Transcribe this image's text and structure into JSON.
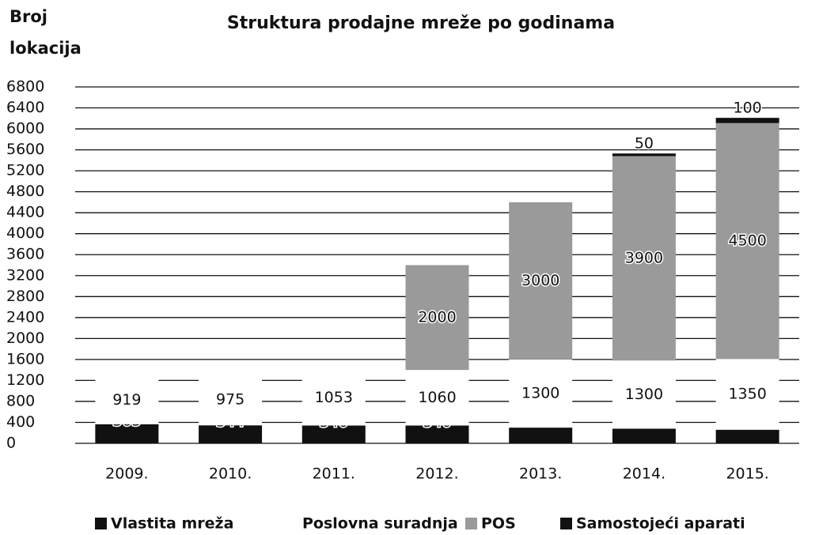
{
  "chart_data": {
    "type": "stacked_bar",
    "title": "Struktura prodajne mreže po godinama",
    "y_label": [
      "Broj",
      "lokacija"
    ],
    "categories": [
      "2009.",
      "2010.",
      "2011.",
      "2012.",
      "2013.",
      "2014.",
      "2015."
    ],
    "series": [
      {
        "name": "Vlastita mreža",
        "color": "#111111",
        "values": [
          365,
          344,
          340,
          340,
          300,
          280,
          260
        ]
      },
      {
        "name": "Poslovna suradnja",
        "color": "#ffffff",
        "values": [
          919,
          975,
          1053,
          1060,
          1300,
          1300,
          1350
        ]
      },
      {
        "name": "POS",
        "color": "#9a9a9a",
        "values": [
          null,
          null,
          null,
          2000,
          3000,
          3900,
          4500
        ]
      },
      {
        "name": "Samostojeći aparati",
        "color": "#111111",
        "values": [
          null,
          null,
          null,
          null,
          null,
          50,
          100
        ]
      }
    ],
    "ylim": [
      0,
      6800
    ],
    "yticks": [
      0,
      400,
      800,
      1200,
      1600,
      2000,
      2400,
      2800,
      3200,
      3600,
      4000,
      4400,
      4800,
      5200,
      5600,
      6000,
      6400,
      6800
    ],
    "grid": true,
    "legend": "bottom"
  }
}
